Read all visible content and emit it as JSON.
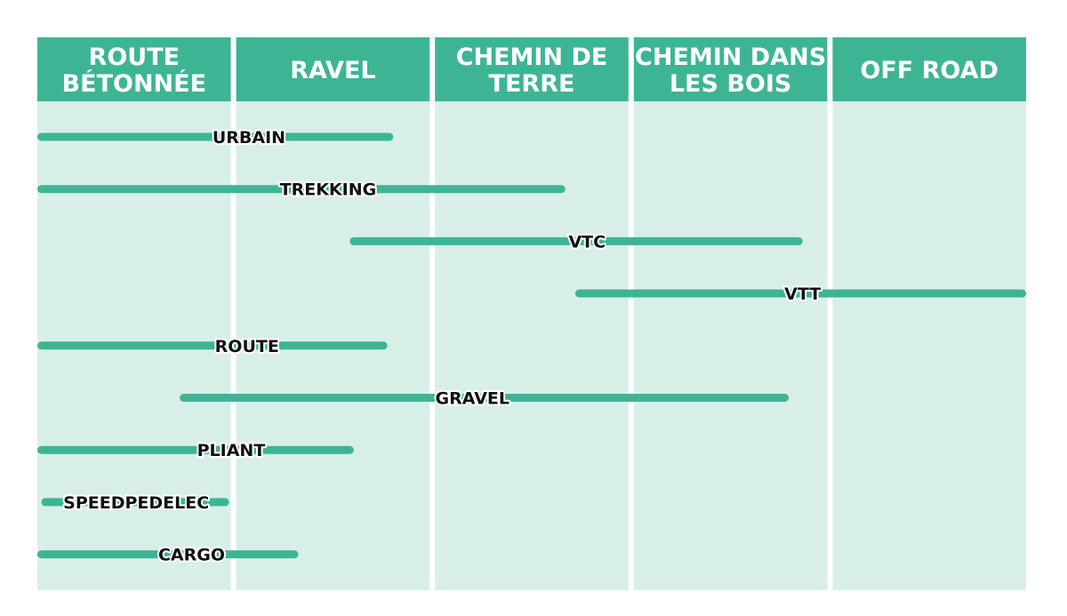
{
  "chart_data": {
    "type": "range",
    "title": "",
    "colors": {
      "header": "#3db595",
      "column_body": "#d8efe8",
      "bar": "#3db595",
      "label_text": "#111111",
      "label_outline": "#ffffff"
    },
    "categories": [
      [
        "ROUTE",
        "BÉTONNÉE"
      ],
      [
        "RAVEL"
      ],
      [
        "CHEMIN DE",
        "TERRE"
      ],
      [
        "CHEMIN DANS",
        "LES BOIS"
      ],
      [
        "OFF ROAD"
      ]
    ],
    "x_range": [
      0,
      5
    ],
    "series": [
      {
        "name": "URBAIN",
        "start": 0.0,
        "end": 1.8,
        "label_at": 1.07
      },
      {
        "name": "TREKKING",
        "start": 0.0,
        "end": 2.67,
        "label_at": 1.47
      },
      {
        "name": "VTC",
        "start": 1.58,
        "end": 3.87,
        "label_at": 2.78
      },
      {
        "name": "VTT",
        "start": 2.72,
        "end": 5.0,
        "label_at": 3.87
      },
      {
        "name": "ROUTE",
        "start": 0.0,
        "end": 1.77,
        "label_at": 1.06
      },
      {
        "name": "GRAVEL",
        "start": 0.72,
        "end": 3.8,
        "label_at": 2.2
      },
      {
        "name": "PLIANT",
        "start": 0.0,
        "end": 1.6,
        "label_at": 0.98
      },
      {
        "name": "SPEEDPEDELEC",
        "start": 0.02,
        "end": 0.97,
        "label_at": 0.5
      },
      {
        "name": "CARGO",
        "start": 0.0,
        "end": 1.32,
        "label_at": 0.78
      }
    ]
  }
}
